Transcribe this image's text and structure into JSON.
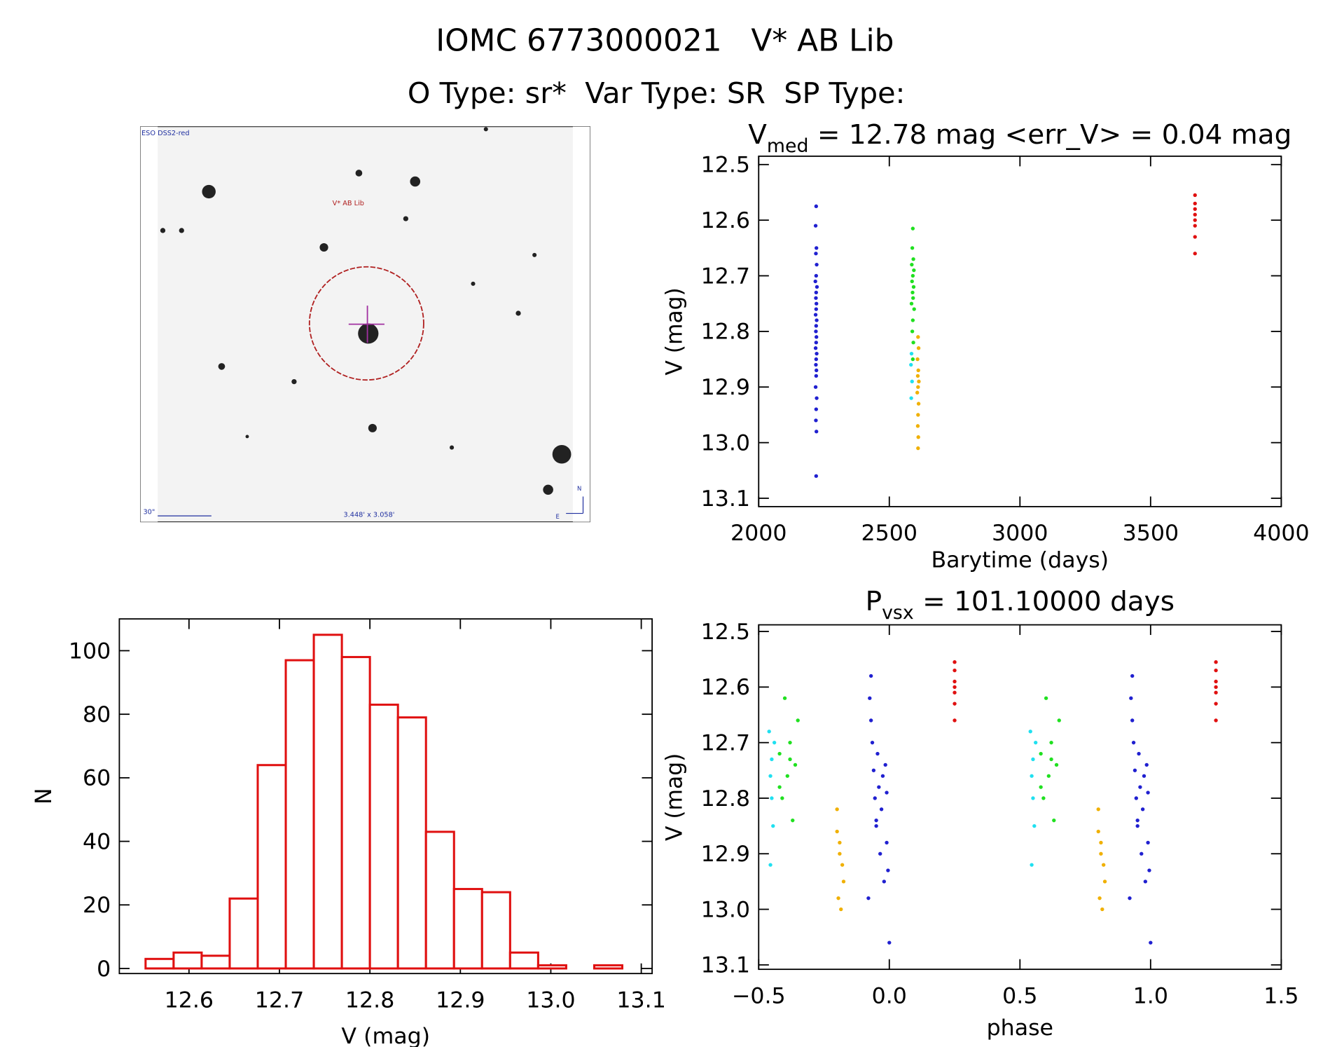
{
  "header": {
    "title": "IOMC 6773000021   V* AB Lib",
    "subtitle": "O Type: sr*  Var Type: SR  SP Type:"
  },
  "image": {
    "survey": "ESO DSS2-red",
    "target": "V* AB Lib",
    "scale_bar": "30\"",
    "field": "3.448' x 3.058'",
    "north": "N",
    "east": "E"
  },
  "chart_data": [
    {
      "type": "scatter",
      "title": [
        "V",
        "med",
        " = 12.78 mag <err_V> = 0.04 mag"
      ],
      "x_label": "Barytime (days)",
      "y_label": "V (mag)",
      "xlim": [
        2000,
        4000
      ],
      "xticks": [
        2000,
        2500,
        3000,
        3500,
        4000
      ],
      "ylim": [
        12.485,
        13.115
      ],
      "y_reversed": true,
      "yticks": [
        12.5,
        12.6,
        12.7,
        12.8,
        12.9,
        {
          "value": 13,
          "label": "13.0"
        },
        13.1
      ],
      "series": [
        {
          "color": "#2020d0",
          "x": [
            2220,
            2218,
            2221,
            2219,
            2222,
            2220,
            2217,
            2223,
            2220,
            2219,
            2221,
            2220,
            2218,
            2222,
            2220,
            2219,
            2221,
            2220,
            2218,
            2222,
            2220,
            2219,
            2221,
            2220,
            2218,
            2222,
            2220,
            2219,
            2221,
            2220
          ],
          "values": [
            12.575,
            12.61,
            12.65,
            12.66,
            12.68,
            12.7,
            12.71,
            12.72,
            12.73,
            12.74,
            12.75,
            12.76,
            12.77,
            12.78,
            12.79,
            12.8,
            12.81,
            12.82,
            12.83,
            12.84,
            12.85,
            12.86,
            12.87,
            12.88,
            12.9,
            12.92,
            12.94,
            12.96,
            12.98,
            13.06
          ]
        },
        {
          "color": "#20e020",
          "x": [
            2590,
            2588,
            2592,
            2586,
            2594,
            2590,
            2587,
            2593,
            2589,
            2591,
            2585,
            2595,
            2590,
            2588,
            2592,
            2590
          ],
          "values": [
            12.615,
            12.65,
            12.67,
            12.68,
            12.69,
            12.7,
            12.71,
            12.72,
            12.73,
            12.74,
            12.75,
            12.76,
            12.78,
            12.8,
            12.82,
            12.85
          ]
        },
        {
          "color": "#20e0f0",
          "x": [
            2585,
            2583,
            2587,
            2584
          ],
          "values": [
            12.84,
            12.86,
            12.89,
            12.92
          ]
        },
        {
          "color": "#f0b000",
          "x": [
            2610,
            2612,
            2608,
            2611,
            2609,
            2613,
            2610,
            2607,
            2612,
            2610,
            2609,
            2611,
            2610
          ],
          "values": [
            12.81,
            12.83,
            12.85,
            12.87,
            12.88,
            12.89,
            12.9,
            12.91,
            12.93,
            12.95,
            12.97,
            12.99,
            13.01
          ]
        },
        {
          "color": "#e01010",
          "x": [
            3670,
            3670,
            3670,
            3670,
            3670,
            3670,
            3670,
            3670
          ],
          "values": [
            12.555,
            12.57,
            12.58,
            12.59,
            12.6,
            12.61,
            12.63,
            12.66
          ]
        }
      ]
    },
    {
      "type": "histogram",
      "x_label": "V (mag)",
      "y_label": "N",
      "color": "#e01010",
      "xlim": [
        12.523,
        13.112
      ],
      "xticks": [
        12.6,
        12.7,
        12.8,
        12.9,
        {
          "value": 13,
          "label": "13.0"
        },
        13.1
      ],
      "ylim": [
        -1.6,
        110
      ],
      "yticks": [
        0,
        20,
        40,
        60,
        80,
        100
      ],
      "bins": [
        12.552,
        12.583,
        12.614,
        12.645,
        12.676,
        12.707,
        12.738,
        12.769,
        12.8,
        12.831,
        12.862,
        12.893,
        12.924,
        12.955,
        12.986,
        13.017,
        13.048,
        13.079
      ],
      "counts": [
        3,
        5,
        4,
        22,
        64,
        97,
        105,
        98,
        83,
        79,
        43,
        25,
        24,
        5,
        1,
        0,
        1
      ]
    },
    {
      "type": "scatter",
      "title": [
        "P",
        "vsx",
        " = 101.10000 days"
      ],
      "x_label": "phase",
      "y_label": "V (mag)",
      "xlim": [
        -0.5,
        1.5
      ],
      "xticks": [
        {
          "value": -0.5,
          "label": "−0.5"
        },
        {
          "value": 0,
          "label": "0.0"
        },
        0.5,
        {
          "value": 1,
          "label": "1.0"
        },
        1.5
      ],
      "ylim": [
        12.488,
        13.108
      ],
      "y_reversed": true,
      "yticks": [
        12.5,
        12.6,
        12.7,
        12.8,
        12.9,
        {
          "value": 13,
          "label": "13.0"
        },
        13.1
      ],
      "series": [
        {
          "color": "#2020d0",
          "x": [
            -0.08,
            -0.075,
            -0.07,
            -0.065,
            -0.06,
            -0.055,
            -0.05,
            -0.045,
            -0.04,
            -0.035,
            -0.03,
            -0.025,
            -0.02,
            -0.015,
            -0.01,
            -0.005,
            0.0,
            -0.07,
            -0.05,
            -0.01
          ],
          "values": [
            12.98,
            12.62,
            12.58,
            12.7,
            12.75,
            12.8,
            12.85,
            12.72,
            12.78,
            12.9,
            12.82,
            12.76,
            12.95,
            12.74,
            12.88,
            12.93,
            13.06,
            12.66,
            12.84,
            12.79
          ]
        },
        {
          "color": "#2020d0",
          "x": [
            0.92,
            0.925,
            0.93,
            0.935,
            0.94,
            0.945,
            0.95,
            0.955,
            0.96,
            0.965,
            0.97,
            0.975,
            0.98,
            0.985,
            0.99,
            0.995,
            1.0,
            0.93,
            0.95,
            0.99
          ],
          "values": [
            12.98,
            12.62,
            12.58,
            12.7,
            12.75,
            12.8,
            12.85,
            12.72,
            12.78,
            12.9,
            12.82,
            12.76,
            12.95,
            12.74,
            12.88,
            12.93,
            13.06,
            12.66,
            12.84,
            12.79
          ]
        },
        {
          "color": "#20e020",
          "x": [
            -0.42,
            -0.41,
            -0.4,
            -0.39,
            -0.38,
            -0.37,
            -0.36,
            -0.35,
            -0.42,
            -0.38
          ],
          "values": [
            12.72,
            12.8,
            12.62,
            12.76,
            12.7,
            12.84,
            12.74,
            12.66,
            12.78,
            12.73
          ]
        },
        {
          "color": "#20e020",
          "x": [
            0.58,
            0.59,
            0.6,
            0.61,
            0.62,
            0.63,
            0.64,
            0.65,
            0.58,
            0.62
          ],
          "values": [
            12.72,
            12.8,
            12.62,
            12.76,
            12.7,
            12.84,
            12.74,
            12.66,
            12.78,
            12.73
          ]
        },
        {
          "color": "#20e0f0",
          "x": [
            -0.46,
            -0.455,
            -0.45,
            -0.445,
            -0.44,
            -0.45,
            -0.455
          ],
          "values": [
            12.68,
            12.92,
            12.73,
            12.85,
            12.7,
            12.8,
            12.76
          ]
        },
        {
          "color": "#20e0f0",
          "x": [
            0.54,
            0.545,
            0.55,
            0.555,
            0.56,
            0.55,
            0.545
          ],
          "values": [
            12.68,
            12.92,
            12.73,
            12.85,
            12.7,
            12.8,
            12.76
          ]
        },
        {
          "color": "#f0b000",
          "x": [
            -0.2,
            -0.195,
            -0.19,
            -0.185,
            -0.18,
            -0.175,
            -0.2,
            -0.19
          ],
          "values": [
            12.82,
            12.98,
            12.88,
            13.0,
            12.92,
            12.95,
            12.86,
            12.9
          ]
        },
        {
          "color": "#f0b000",
          "x": [
            0.8,
            0.805,
            0.81,
            0.815,
            0.82,
            0.825,
            0.8,
            0.81
          ],
          "values": [
            12.82,
            12.98,
            12.88,
            13.0,
            12.92,
            12.95,
            12.86,
            12.9
          ]
        },
        {
          "color": "#e01010",
          "x": [
            0.25,
            0.25,
            0.25,
            0.25,
            0.25,
            0.25,
            0.25
          ],
          "values": [
            12.555,
            12.57,
            12.59,
            12.6,
            12.61,
            12.63,
            12.66
          ]
        },
        {
          "color": "#e01010",
          "x": [
            1.25,
            1.25,
            1.25,
            1.25,
            1.25,
            1.25,
            1.25
          ],
          "values": [
            12.555,
            12.57,
            12.59,
            12.6,
            12.61,
            12.63,
            12.66
          ]
        }
      ]
    }
  ]
}
